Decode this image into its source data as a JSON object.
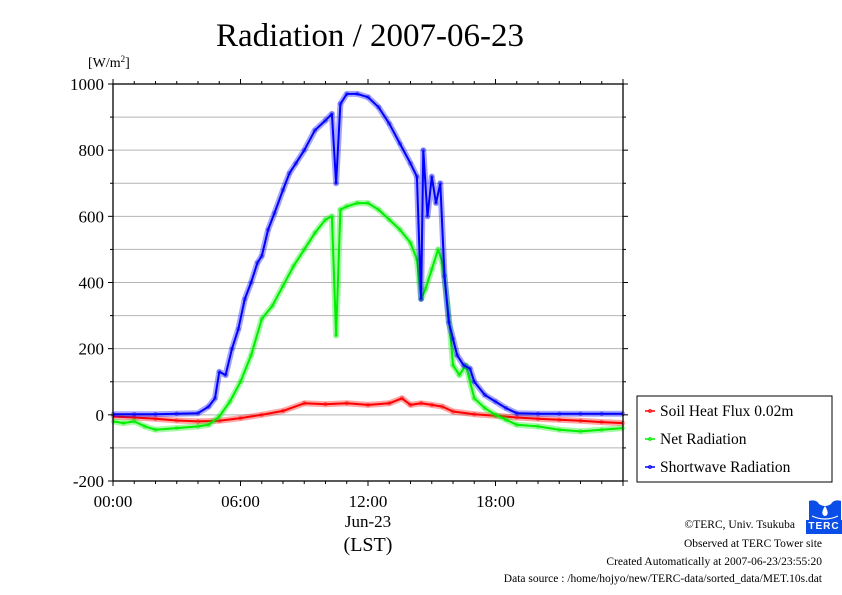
{
  "chart_data": {
    "type": "line",
    "title": "Radiation / 2007-06-23",
    "ylabel_unit": "[W/m",
    "ylabel_sup": "2",
    "ylabel_end": "]",
    "xlabel_date": "Jun-23",
    "xlabel": "(LST)",
    "ylim": [
      -200,
      1000
    ],
    "xlim_hours": [
      0,
      24
    ],
    "yticks": [
      -200,
      0,
      200,
      400,
      600,
      800,
      1000
    ],
    "ytick_labels": [
      "-200",
      "0",
      "200",
      "400",
      "600",
      "800",
      "1000"
    ],
    "xticks_hours": [
      0,
      6,
      12,
      18
    ],
    "xtick_labels": [
      "00:00",
      "06:00",
      "12:00",
      "18:00"
    ],
    "grid": true,
    "legend_position": "right-bottom-outside",
    "series": [
      {
        "name": "Soil Heat Flux 0.02m",
        "color": "#ff0000",
        "x_hours": [
          0,
          1,
          2,
          3,
          4,
          5,
          6,
          7,
          8,
          9,
          10,
          11,
          12,
          13,
          13.6,
          14,
          14.5,
          15,
          15.5,
          16,
          17,
          18,
          19,
          20,
          21,
          22,
          23,
          24
        ],
        "values": [
          -5,
          -8,
          -12,
          -17,
          -20,
          -18,
          -10,
          0,
          12,
          35,
          32,
          35,
          30,
          35,
          50,
          30,
          35,
          30,
          25,
          10,
          2,
          -3,
          -8,
          -12,
          -15,
          -18,
          -22,
          -25
        ]
      },
      {
        "name": "Net Radiation",
        "color": "#00ee00",
        "x_hours": [
          0,
          0.5,
          1,
          1.5,
          2,
          3,
          4,
          4.5,
          5,
          5.5,
          6,
          6.5,
          7,
          7.5,
          8,
          8.5,
          9,
          9.5,
          10,
          10.3,
          10.5,
          10.7,
          11,
          11.5,
          12,
          12.5,
          13,
          13.5,
          14,
          14.3,
          14.5,
          14.7,
          15,
          15.3,
          15.5,
          15.8,
          16,
          16.3,
          16.6,
          17,
          17.5,
          18,
          18.5,
          19,
          20,
          21,
          22,
          23,
          24
        ],
        "values": [
          -20,
          -25,
          -20,
          -35,
          -45,
          -40,
          -35,
          -30,
          -5,
          40,
          100,
          180,
          290,
          330,
          390,
          450,
          500,
          550,
          590,
          600,
          240,
          620,
          630,
          640,
          640,
          620,
          590,
          560,
          520,
          470,
          350,
          380,
          440,
          500,
          460,
          300,
          150,
          120,
          150,
          50,
          20,
          0,
          -15,
          -30,
          -35,
          -45,
          -50,
          -45,
          -40
        ]
      },
      {
        "name": "Shortwave Radiation",
        "color": "#0000ff",
        "x_hours": [
          0,
          1,
          2,
          3,
          4,
          4.5,
          4.8,
          5,
          5.3,
          5.6,
          5.9,
          6.2,
          6.5,
          6.8,
          7,
          7.3,
          7.6,
          8,
          8.3,
          8.6,
          9,
          9.5,
          10,
          10.3,
          10.5,
          10.7,
          11,
          11.5,
          12,
          12.5,
          13,
          13.5,
          14,
          14.3,
          14.5,
          14.6,
          14.8,
          15,
          15.2,
          15.4,
          15.6,
          15.8,
          16,
          16.2,
          16.5,
          16.8,
          17,
          17.5,
          18,
          18.5,
          19,
          20,
          21,
          22,
          23,
          24
        ],
        "values": [
          2,
          2,
          2,
          3,
          5,
          25,
          50,
          130,
          120,
          200,
          260,
          350,
          400,
          460,
          480,
          560,
          610,
          680,
          730,
          760,
          800,
          860,
          890,
          910,
          700,
          940,
          970,
          970,
          960,
          930,
          880,
          820,
          760,
          720,
          350,
          800,
          600,
          720,
          640,
          700,
          420,
          280,
          230,
          180,
          150,
          140,
          100,
          60,
          40,
          20,
          5,
          3,
          3,
          3,
          3,
          3
        ]
      }
    ]
  },
  "footer": {
    "copyright": "©TERC, Univ. Tsukuba",
    "observed": "Observed at TERC Tower site",
    "created": "Created Automatically at 2007-06-23/23:55:20",
    "source": "Data source : /home/hojyo/new/TERC-data/sorted_data/MET.10s.dat",
    "logo_text": "TERC"
  }
}
